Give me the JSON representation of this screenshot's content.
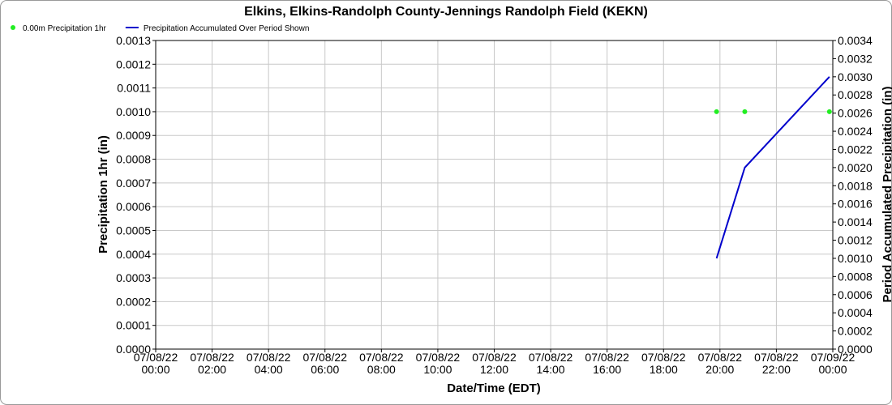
{
  "chart_data": {
    "type": "line",
    "title": "Elkins, Elkins-Randolph County-Jennings Randolph Field (KEKN)",
    "x_label": "Date/Time (EDT)",
    "y_label": "Precipitation 1hr (in)",
    "y2_label": "Period Accumulated Precipitation (in)",
    "x": [
      19.88,
      20.88,
      23.88
    ],
    "xlim": [
      0,
      24
    ],
    "xticks": [
      {
        "value": 0,
        "label": [
          "07/08/22",
          "00:00"
        ]
      },
      {
        "value": 2,
        "label": [
          "07/08/22",
          "02:00"
        ]
      },
      {
        "value": 4,
        "label": [
          "07/08/22",
          "04:00"
        ]
      },
      {
        "value": 6,
        "label": [
          "07/08/22",
          "06:00"
        ]
      },
      {
        "value": 8,
        "label": [
          "07/08/22",
          "08:00"
        ]
      },
      {
        "value": 10,
        "label": [
          "07/08/22",
          "10:00"
        ]
      },
      {
        "value": 12,
        "label": [
          "07/08/22",
          "12:00"
        ]
      },
      {
        "value": 14,
        "label": [
          "07/08/22",
          "14:00"
        ]
      },
      {
        "value": 16,
        "label": [
          "07/08/22",
          "16:00"
        ]
      },
      {
        "value": 18,
        "label": [
          "07/08/22",
          "18:00"
        ]
      },
      {
        "value": 20,
        "label": [
          "07/08/22",
          "20:00"
        ]
      },
      {
        "value": 22,
        "label": [
          "07/08/22",
          "22:00"
        ]
      },
      {
        "value": 24,
        "label": [
          "07/09/22",
          "00:00"
        ]
      }
    ],
    "ylim": [
      0,
      0.0013
    ],
    "yticks": [
      {
        "value": 0,
        "label": "0.0000"
      },
      {
        "value": 0.0001,
        "label": "0.0001"
      },
      {
        "value": 0.0002,
        "label": "0.0002"
      },
      {
        "value": 0.0003,
        "label": "0.0003"
      },
      {
        "value": 0.0004,
        "label": "0.0004"
      },
      {
        "value": 0.0005,
        "label": "0.0005"
      },
      {
        "value": 0.0006,
        "label": "0.0006"
      },
      {
        "value": 0.0007,
        "label": "0.0007"
      },
      {
        "value": 0.0008,
        "label": "0.0008"
      },
      {
        "value": 0.0009,
        "label": "0.0009"
      },
      {
        "value": 0.001,
        "label": "0.0010"
      },
      {
        "value": 0.0011,
        "label": "0.0011"
      },
      {
        "value": 0.0012,
        "label": "0.0012"
      },
      {
        "value": 0.0013,
        "label": "0.0013"
      }
    ],
    "y2lim": [
      0,
      0.0034
    ],
    "y2ticks": [
      {
        "value": 0,
        "label": "0.0000"
      },
      {
        "value": 0.0002,
        "label": "0.0002"
      },
      {
        "value": 0.0004,
        "label": "0.0004"
      },
      {
        "value": 0.0006,
        "label": "0.0006"
      },
      {
        "value": 0.0008,
        "label": "0.0008"
      },
      {
        "value": 0.001,
        "label": "0.0010"
      },
      {
        "value": 0.0012,
        "label": "0.0012"
      },
      {
        "value": 0.0014,
        "label": "0.0014"
      },
      {
        "value": 0.0016,
        "label": "0.0016"
      },
      {
        "value": 0.0018,
        "label": "0.0018"
      },
      {
        "value": 0.002,
        "label": "0.0020"
      },
      {
        "value": 0.0022,
        "label": "0.0022"
      },
      {
        "value": 0.0024,
        "label": "0.0024"
      },
      {
        "value": 0.0026,
        "label": "0.0026"
      },
      {
        "value": 0.0028,
        "label": "0.0028"
      },
      {
        "value": 0.003,
        "label": "0.0030"
      },
      {
        "value": 0.0032,
        "label": "0.0032"
      },
      {
        "value": 0.0034,
        "label": "0.0034"
      }
    ],
    "grid": true,
    "legend": "top-left",
    "series": [
      {
        "name": "0.00m Precipitation 1hr",
        "color": "#22ee22",
        "style": "points",
        "values": [
          0.001,
          0.001,
          0.001
        ]
      },
      {
        "name": "Precipitation Accumulated Over Period Shown",
        "color": "#0000cc",
        "style": "line",
        "axis": "y2",
        "values": [
          0.001,
          0.002,
          0.003
        ]
      }
    ]
  }
}
